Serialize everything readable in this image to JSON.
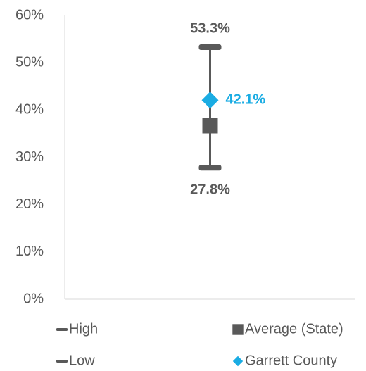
{
  "chart_data": {
    "type": "high-low",
    "categories": [
      null
    ],
    "series": [
      {
        "name": "High",
        "color": "#595959",
        "marker": "dash",
        "values": [
          53.3
        ],
        "value_labels": [
          "53.3%"
        ],
        "label_position": "above"
      },
      {
        "name": "Average (State)",
        "color": "#595959",
        "marker": "square",
        "values": [
          36.7
        ]
      },
      {
        "name": "Low",
        "color": "#595959",
        "marker": "dash",
        "values": [
          27.8
        ],
        "value_labels": [
          "27.8%"
        ],
        "label_position": "below"
      },
      {
        "name": "Garrett County",
        "color": "#1aace3",
        "marker": "diamond",
        "values": [
          42.1
        ],
        "value_labels": [
          "42.1%"
        ],
        "label_position": "right"
      }
    ],
    "ylim": [
      0,
      60
    ],
    "yticks": [
      {
        "value": 0,
        "label": "0%"
      },
      {
        "value": 10,
        "label": "10%"
      },
      {
        "value": 20,
        "label": "20%"
      },
      {
        "value": 30,
        "label": "30%"
      },
      {
        "value": 40,
        "label": "40%"
      },
      {
        "value": 50,
        "label": "50%"
      },
      {
        "value": 60,
        "label": "60%"
      }
    ],
    "grid": false
  }
}
